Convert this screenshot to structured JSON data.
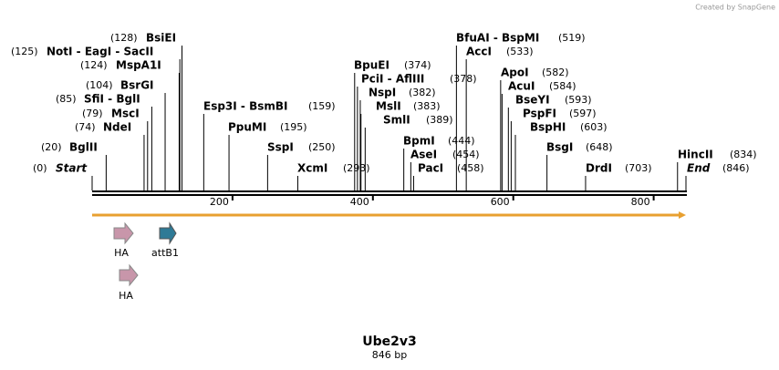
{
  "credit": "Created by SnapGene",
  "title": "Ube2v3",
  "subtitle": "846 bp",
  "length": 846,
  "ruler_ticks": [
    200,
    400,
    600,
    800
  ],
  "sites": [
    {
      "name": "Start",
      "position": 0,
      "label": "(0)"
    },
    {
      "name": "BglII",
      "position": 20,
      "label": "(20)"
    },
    {
      "name": "NdeI",
      "position": 74,
      "label": "(74)"
    },
    {
      "name": "MscI",
      "position": 79,
      "label": "(79)"
    },
    {
      "name": "SfiI - BglI",
      "position": 85,
      "label": "(85)"
    },
    {
      "name": "BsrGI",
      "position": 104,
      "label": "(104)"
    },
    {
      "name": "MspA1I",
      "position": 124,
      "label": "(124)"
    },
    {
      "name": "NotI - EagI - SacII",
      "position": 125,
      "label": "(125)"
    },
    {
      "name": "BsiEI",
      "position": 128,
      "label": "(128)"
    },
    {
      "name": "Esp3I - BsmBI",
      "position": 159,
      "label": "(159)"
    },
    {
      "name": "PpuMI",
      "position": 195,
      "label": "(195)"
    },
    {
      "name": "SspI",
      "position": 250,
      "label": "(250)"
    },
    {
      "name": "XcmI",
      "position": 293,
      "label": "(293)"
    },
    {
      "name": "BpuEI",
      "position": 374,
      "label": "(374)"
    },
    {
      "name": "PciI - AflIII",
      "position": 378,
      "label": "(378)"
    },
    {
      "name": "NspI",
      "position": 382,
      "label": "(382)"
    },
    {
      "name": "MslI",
      "position": 383,
      "label": "(383)"
    },
    {
      "name": "SmlI",
      "position": 389,
      "label": "(389)"
    },
    {
      "name": "BpmI",
      "position": 444,
      "label": "(444)"
    },
    {
      "name": "AseI",
      "position": 454,
      "label": "(454)"
    },
    {
      "name": "PacI",
      "position": 458,
      "label": "(458)"
    },
    {
      "name": "BfuAI - BspMI",
      "position": 519,
      "label": "(519)"
    },
    {
      "name": "AccI",
      "position": 533,
      "label": "(533)"
    },
    {
      "name": "ApoI",
      "position": 582,
      "label": "(582)"
    },
    {
      "name": "AcuI",
      "position": 584,
      "label": "(584)"
    },
    {
      "name": "BseYI",
      "position": 593,
      "label": "(593)"
    },
    {
      "name": "PspFI",
      "position": 597,
      "label": "(597)"
    },
    {
      "name": "BspHI",
      "position": 603,
      "label": "(603)"
    },
    {
      "name": "BsgI",
      "position": 648,
      "label": "(648)"
    },
    {
      "name": "DrdI",
      "position": 703,
      "label": "(703)"
    },
    {
      "name": "HincII",
      "position": 834,
      "label": "(834)"
    },
    {
      "name": "End",
      "position": 846,
      "label": "(846)"
    }
  ],
  "features": [
    {
      "name": "HA"
    },
    {
      "name": "attB1"
    },
    {
      "name": "HA"
    }
  ]
}
